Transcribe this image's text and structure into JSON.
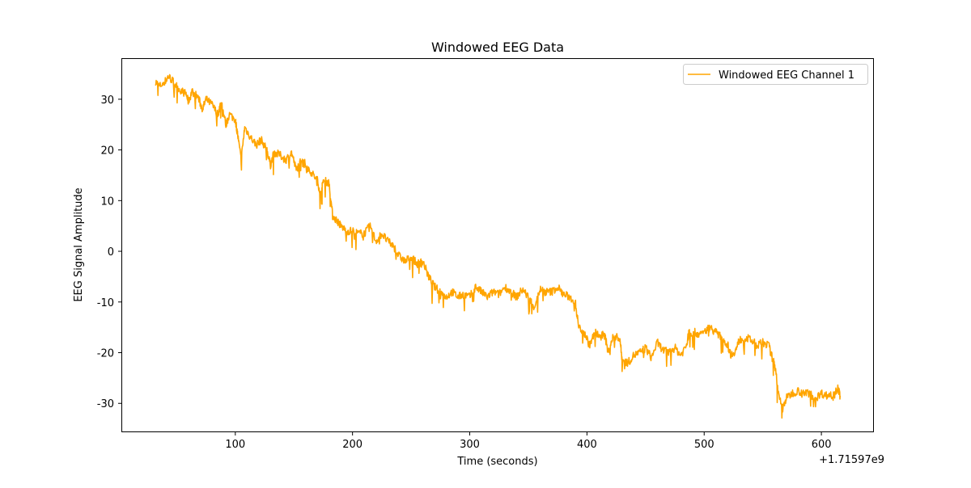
{
  "chart_data": {
    "type": "line",
    "title": "Windowed EEG Data",
    "xlabel": "Time (seconds)",
    "ylabel": "EEG Signal Amplitude",
    "x_offset_label": "+1.71597e9",
    "xlim": [
      2.8,
      644.8
    ],
    "ylim": [
      -35.7,
      38.1
    ],
    "xticks": [
      100,
      200,
      300,
      400,
      500,
      600
    ],
    "yticks": [
      -30,
      -20,
      -10,
      0,
      10,
      20,
      30
    ],
    "grid": false,
    "legend": {
      "placement": "top-right",
      "entries": [
        "Windowed EEG Channel 1"
      ]
    },
    "series": [
      {
        "name": "Windowed EEG Channel 1",
        "color": "#FFA500",
        "x": [
          32,
          35,
          40,
          43,
          47,
          52,
          58,
          60,
          63,
          68,
          72,
          75,
          80,
          85,
          88,
          92,
          95,
          100,
          102,
          105,
          108,
          113,
          118,
          122,
          127,
          130,
          133,
          138,
          143,
          148,
          152,
          157,
          160,
          165,
          170,
          173,
          175,
          180,
          183,
          187,
          190,
          195,
          200,
          205,
          210,
          215,
          220,
          225,
          230,
          235,
          240,
          245,
          250,
          255,
          260,
          265,
          270,
          275,
          280,
          285,
          290,
          295,
          300,
          305,
          310,
          315,
          320,
          325,
          330,
          335,
          340,
          345,
          350,
          355,
          360,
          365,
          370,
          375,
          380,
          385,
          390,
          393,
          398,
          402,
          407,
          412,
          415,
          418,
          422,
          428,
          430,
          435,
          440,
          445,
          450,
          455,
          460,
          465,
          470,
          475,
          480,
          485,
          487,
          492,
          497,
          502,
          505,
          510,
          515,
          520,
          523,
          527,
          530,
          535,
          540,
          545,
          550,
          555,
          558,
          561,
          563,
          567,
          570,
          575,
          580,
          585,
          590,
          595,
          600,
          605,
          610,
          614,
          616
        ],
        "y": [
          33.5,
          32.5,
          33.5,
          34.5,
          33.5,
          32,
          31,
          29.5,
          31.5,
          30.5,
          28,
          30,
          29,
          27,
          29.5,
          25,
          27,
          26,
          23,
          18,
          24.5,
          22.5,
          21,
          22,
          20,
          17,
          19.5,
          19,
          18,
          19.5,
          16,
          18.5,
          17,
          15.5,
          14,
          11,
          14,
          13.5,
          7,
          6,
          5,
          4,
          4,
          3.5,
          3.5,
          5,
          2,
          3.5,
          2,
          1,
          -1,
          -2,
          -1,
          -2.5,
          -2,
          -5,
          -7,
          -8,
          -9,
          -8,
          -9,
          -8.5,
          -9,
          -7,
          -8,
          -9,
          -8,
          -8.5,
          -7,
          -8,
          -9,
          -7.5,
          -9,
          -11,
          -7.5,
          -8,
          -8,
          -7,
          -8.5,
          -9,
          -10,
          -15,
          -16,
          -18.5,
          -16,
          -17,
          -16,
          -20,
          -17,
          -17,
          -21.5,
          -22,
          -20.5,
          -20,
          -19,
          -21,
          -18,
          -19.5,
          -20,
          -19,
          -20.5,
          -18.5,
          -16,
          -16,
          -16.5,
          -15.5,
          -15,
          -16,
          -17,
          -18.5,
          -20.5,
          -19.5,
          -17.5,
          -17,
          -17.5,
          -18.5,
          -18,
          -18.5,
          -21,
          -23,
          -28,
          -31,
          -29,
          -28,
          -27.5,
          -28,
          -28,
          -29,
          -28,
          -28.5,
          -28,
          -27,
          -28.5
        ]
      }
    ]
  }
}
